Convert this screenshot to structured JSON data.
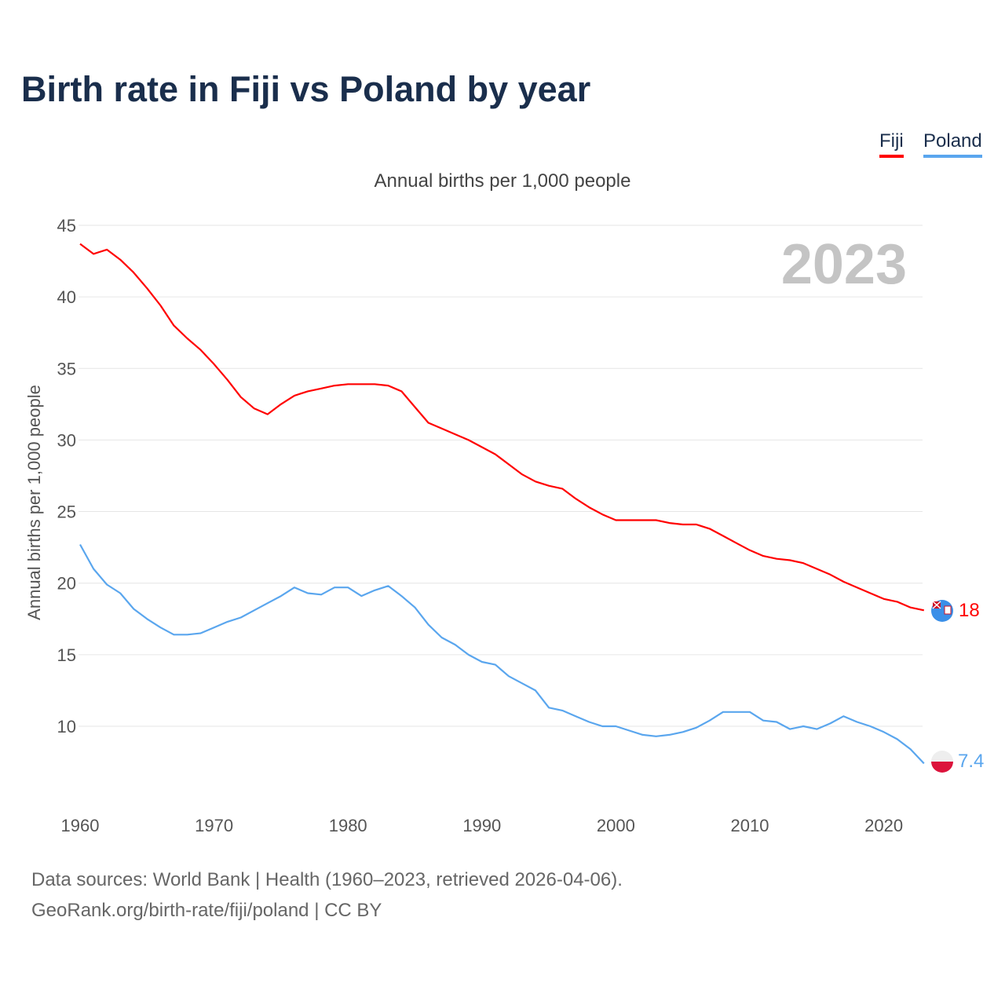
{
  "title": "Birth rate in Fiji vs Poland by year",
  "subtitle": "Annual births per 1,000 people",
  "year_watermark": "2023",
  "footer": {
    "line1": "Data sources: World Bank | Health (1960–2023, retrieved 2026-04-06).",
    "line2": "GeoRank.org/birth-rate/fiji/poland | CC BY"
  },
  "colors": {
    "fiji": "#ff0000",
    "poland": "#5aa6ee"
  },
  "chart_data": {
    "type": "line",
    "title": "Birth rate in Fiji vs Poland by year",
    "ylabel": "Annual births per 1,000 people",
    "xlabel": "",
    "xlim": [
      1960,
      2024
    ],
    "ylim": [
      5,
      45
    ],
    "yticks": [
      10,
      15,
      20,
      25,
      30,
      35,
      40,
      45
    ],
    "xticks": [
      1960,
      1970,
      1980,
      1990,
      2000,
      2010,
      2020
    ],
    "grid": true,
    "legend": "top-right",
    "x_start": 1960,
    "series": [
      {
        "name": "Fiji",
        "end_label": "18",
        "values": [
          43.7,
          43.0,
          43.3,
          42.6,
          41.7,
          40.6,
          39.4,
          38.0,
          37.1,
          36.3,
          35.3,
          34.2,
          33.0,
          32.2,
          31.8,
          32.5,
          33.1,
          33.4,
          33.6,
          33.8,
          33.9,
          33.9,
          33.9,
          33.8,
          33.4,
          32.3,
          31.2,
          30.8,
          30.4,
          30.0,
          29.5,
          29.0,
          28.3,
          27.6,
          27.1,
          26.8,
          26.6,
          25.9,
          25.3,
          24.8,
          24.4,
          24.4,
          24.4,
          24.4,
          24.2,
          24.1,
          24.1,
          23.8,
          23.3,
          22.8,
          22.3,
          21.9,
          21.7,
          21.6,
          21.4,
          21.0,
          20.6,
          20.1,
          19.7,
          19.3,
          18.9,
          18.7,
          18.3,
          18.1
        ]
      },
      {
        "name": "Poland",
        "end_label": "7.4",
        "values": [
          22.7,
          21.0,
          19.9,
          19.3,
          18.2,
          17.5,
          16.9,
          16.4,
          16.4,
          16.5,
          16.9,
          17.3,
          17.6,
          18.1,
          18.6,
          19.1,
          19.7,
          19.3,
          19.2,
          19.7,
          19.7,
          19.1,
          19.5,
          19.8,
          19.1,
          18.3,
          17.1,
          16.2,
          15.7,
          15.0,
          14.5,
          14.3,
          13.5,
          13.0,
          12.5,
          11.3,
          11.1,
          10.7,
          10.3,
          10.0,
          10.0,
          9.7,
          9.4,
          9.3,
          9.4,
          9.6,
          9.9,
          10.4,
          11.0,
          11.0,
          11.0,
          10.4,
          10.3,
          9.8,
          10.0,
          9.8,
          10.2,
          10.7,
          10.3,
          10.0,
          9.6,
          9.1,
          8.4,
          7.4
        ]
      }
    ]
  }
}
